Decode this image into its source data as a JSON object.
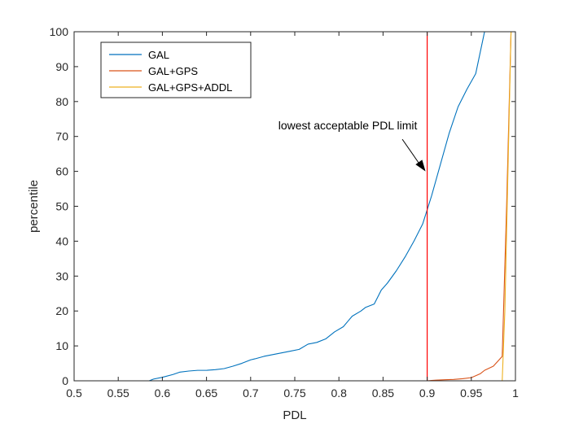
{
  "chart_data": {
    "type": "line",
    "title": "",
    "xlabel": "PDL",
    "ylabel": "percentile",
    "xlim": [
      0.5,
      1
    ],
    "ylim": [
      0,
      100
    ],
    "xticks": [
      0.5,
      0.55,
      0.6,
      0.65,
      0.7,
      0.75,
      0.8,
      0.85,
      0.9,
      0.95,
      1
    ],
    "xtick_labels": [
      "0.5",
      "0.55",
      "0.6",
      "0.65",
      "0.7",
      "0.75",
      "0.8",
      "0.85",
      "0.9",
      "0.95",
      "1"
    ],
    "yticks": [
      0,
      10,
      20,
      30,
      40,
      50,
      60,
      70,
      80,
      90,
      100
    ],
    "ytick_labels": [
      "0",
      "10",
      "20",
      "30",
      "40",
      "50",
      "60",
      "70",
      "80",
      "90",
      "100"
    ],
    "grid": false,
    "legend_position": "top-left",
    "series": [
      {
        "name": "GAL",
        "color": "#0072BD",
        "x": [
          0.5,
          0.585,
          0.59,
          0.6,
          0.612,
          0.62,
          0.63,
          0.64,
          0.65,
          0.66,
          0.67,
          0.68,
          0.69,
          0.7,
          0.705,
          0.715,
          0.725,
          0.735,
          0.745,
          0.755,
          0.765,
          0.775,
          0.785,
          0.795,
          0.805,
          0.81,
          0.815,
          0.825,
          0.83,
          0.84,
          0.848,
          0.855,
          0.865,
          0.875,
          0.885,
          0.895,
          0.905,
          0.915,
          0.925,
          0.935,
          0.945,
          0.955,
          0.965,
          0.975,
          0.978,
          0.99,
          0.995
        ],
        "y": [
          0,
          0,
          0.5,
          1,
          1.8,
          2.5,
          2.8,
          3,
          3,
          3.2,
          3.5,
          4.2,
          5,
          6,
          6.3,
          7,
          7.5,
          8,
          8.5,
          9,
          10.5,
          11,
          12,
          14,
          15.5,
          17,
          18.5,
          20,
          21,
          22,
          26,
          28,
          31.5,
          35.5,
          40,
          45,
          53,
          62,
          71,
          78.5,
          83.5,
          88,
          100,
          100,
          100,
          100,
          100
        ]
      },
      {
        "name": "GAL+GPS",
        "color": "#D95319",
        "x": [
          0.5,
          0.9,
          0.905,
          0.91,
          0.92,
          0.93,
          0.94,
          0.95,
          0.96,
          0.965,
          0.975,
          0.985,
          0.99,
          0.995
        ],
        "y": [
          0,
          0,
          0.1,
          0.2,
          0.3,
          0.4,
          0.6,
          0.9,
          2,
          3,
          4.2,
          7,
          50,
          100
        ]
      },
      {
        "name": "GAL+GPS+ADDL",
        "color": "#EDB120",
        "x": [
          0.5,
          0.985,
          0.988,
          0.995
        ],
        "y": [
          0,
          0,
          20,
          100
        ]
      }
    ],
    "reference_line": {
      "x": 0.9,
      "color": "#FF0000"
    },
    "annotation": {
      "text": "lowest acceptable  PDL limit",
      "arrow_to": [
        0.9,
        60
      ],
      "text_anchor_xy": [
        0.81,
        72
      ]
    }
  }
}
